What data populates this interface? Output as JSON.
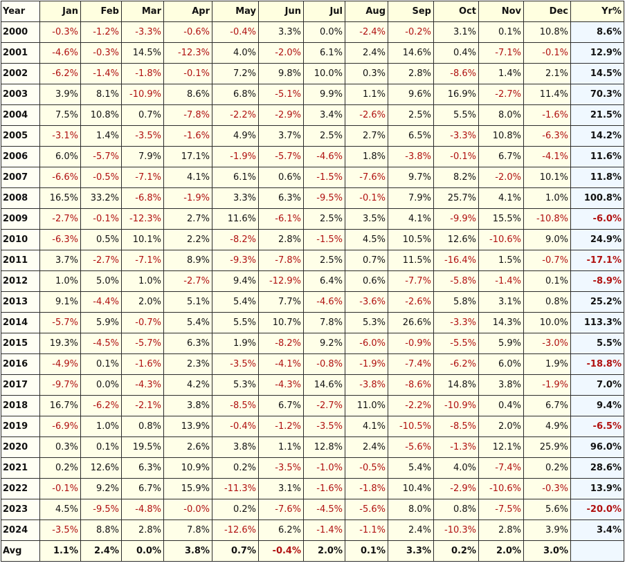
{
  "table": {
    "columns": [
      "Year",
      "Jan",
      "Feb",
      "Mar",
      "Apr",
      "May",
      "Jun",
      "Jul",
      "Aug",
      "Sep",
      "Oct",
      "Nov",
      "Dec",
      "Yr%"
    ],
    "rows": [
      [
        "2000",
        "-0.3%",
        "-1.2%",
        "-3.3%",
        "-0.6%",
        "-0.4%",
        "3.3%",
        "0.0%",
        "-2.4%",
        "-0.2%",
        "3.1%",
        "0.1%",
        "10.8%",
        "8.6%"
      ],
      [
        "2001",
        "-4.6%",
        "-0.3%",
        "14.5%",
        "-12.3%",
        "4.0%",
        "-2.0%",
        "6.1%",
        "2.4%",
        "14.6%",
        "0.4%",
        "-7.1%",
        "-0.1%",
        "12.9%"
      ],
      [
        "2002",
        "-6.2%",
        "-1.4%",
        "-1.8%",
        "-0.1%",
        "7.2%",
        "9.8%",
        "10.0%",
        "0.3%",
        "2.8%",
        "-8.6%",
        "1.4%",
        "2.1%",
        "14.5%"
      ],
      [
        "2003",
        "3.9%",
        "8.1%",
        "-10.9%",
        "8.6%",
        "6.8%",
        "-5.1%",
        "9.9%",
        "1.1%",
        "9.6%",
        "16.9%",
        "-2.7%",
        "11.4%",
        "70.3%"
      ],
      [
        "2004",
        "7.5%",
        "10.8%",
        "0.7%",
        "-7.8%",
        "-2.2%",
        "-2.9%",
        "3.4%",
        "-2.6%",
        "2.5%",
        "5.5%",
        "8.0%",
        "-1.6%",
        "21.5%"
      ],
      [
        "2005",
        "-3.1%",
        "1.4%",
        "-3.5%",
        "-1.6%",
        "4.9%",
        "3.7%",
        "2.5%",
        "2.7%",
        "6.5%",
        "-3.3%",
        "10.8%",
        "-6.3%",
        "14.2%"
      ],
      [
        "2006",
        "6.0%",
        "-5.7%",
        "7.9%",
        "17.1%",
        "-1.9%",
        "-5.7%",
        "-4.6%",
        "1.8%",
        "-3.8%",
        "-0.1%",
        "6.7%",
        "-4.1%",
        "11.6%"
      ],
      [
        "2007",
        "-6.6%",
        "-0.5%",
        "-7.1%",
        "4.1%",
        "6.1%",
        "0.6%",
        "-1.5%",
        "-7.6%",
        "9.7%",
        "8.2%",
        "-2.0%",
        "10.1%",
        "11.8%"
      ],
      [
        "2008",
        "16.5%",
        "33.2%",
        "-6.8%",
        "-1.9%",
        "3.3%",
        "6.3%",
        "-9.5%",
        "-0.1%",
        "7.9%",
        "25.7%",
        "4.1%",
        "1.0%",
        "100.8%"
      ],
      [
        "2009",
        "-2.7%",
        "-0.1%",
        "-12.3%",
        "2.7%",
        "11.6%",
        "-6.1%",
        "2.5%",
        "3.5%",
        "4.1%",
        "-9.9%",
        "15.5%",
        "-10.8%",
        "-6.0%"
      ],
      [
        "2010",
        "-6.3%",
        "0.5%",
        "10.1%",
        "2.2%",
        "-8.2%",
        "2.8%",
        "-1.5%",
        "4.5%",
        "10.5%",
        "12.6%",
        "-10.6%",
        "9.0%",
        "24.9%"
      ],
      [
        "2011",
        "3.7%",
        "-2.7%",
        "-7.1%",
        "8.9%",
        "-9.3%",
        "-7.8%",
        "2.5%",
        "0.7%",
        "11.5%",
        "-16.4%",
        "1.5%",
        "-0.7%",
        "-17.1%"
      ],
      [
        "2012",
        "1.0%",
        "5.0%",
        "1.0%",
        "-2.7%",
        "9.4%",
        "-12.9%",
        "6.4%",
        "0.6%",
        "-7.7%",
        "-5.8%",
        "-1.4%",
        "0.1%",
        "-8.9%"
      ],
      [
        "2013",
        "9.1%",
        "-4.4%",
        "2.0%",
        "5.1%",
        "5.4%",
        "7.7%",
        "-4.6%",
        "-3.6%",
        "-2.6%",
        "5.8%",
        "3.1%",
        "0.8%",
        "25.2%"
      ],
      [
        "2014",
        "-5.7%",
        "5.9%",
        "-0.7%",
        "5.4%",
        "5.5%",
        "10.7%",
        "7.8%",
        "5.3%",
        "26.6%",
        "-3.3%",
        "14.3%",
        "10.0%",
        "113.3%"
      ],
      [
        "2015",
        "19.3%",
        "-4.5%",
        "-5.7%",
        "6.3%",
        "1.9%",
        "-8.2%",
        "9.2%",
        "-6.0%",
        "-0.9%",
        "-5.5%",
        "5.9%",
        "-3.0%",
        "5.5%"
      ],
      [
        "2016",
        "-4.9%",
        "0.1%",
        "-1.6%",
        "2.3%",
        "-3.5%",
        "-4.1%",
        "-0.8%",
        "-1.9%",
        "-7.4%",
        "-6.2%",
        "6.0%",
        "1.9%",
        "-18.8%"
      ],
      [
        "2017",
        "-9.7%",
        "0.0%",
        "-4.3%",
        "4.2%",
        "5.3%",
        "-4.3%",
        "14.6%",
        "-3.8%",
        "-8.6%",
        "14.8%",
        "3.8%",
        "-1.9%",
        "7.0%"
      ],
      [
        "2018",
        "16.7%",
        "-6.2%",
        "-2.1%",
        "3.8%",
        "-8.5%",
        "6.7%",
        "-2.7%",
        "11.0%",
        "-2.2%",
        "-10.9%",
        "0.4%",
        "6.7%",
        "9.4%"
      ],
      [
        "2019",
        "-6.9%",
        "1.0%",
        "0.8%",
        "13.9%",
        "-0.4%",
        "-1.2%",
        "-3.5%",
        "4.1%",
        "-10.5%",
        "-8.5%",
        "2.0%",
        "4.9%",
        "-6.5%"
      ],
      [
        "2020",
        "0.3%",
        "0.1%",
        "19.5%",
        "2.6%",
        "3.8%",
        "1.1%",
        "12.8%",
        "2.4%",
        "-5.6%",
        "-1.3%",
        "12.1%",
        "25.9%",
        "96.0%"
      ],
      [
        "2021",
        "0.2%",
        "12.6%",
        "6.3%",
        "10.9%",
        "0.2%",
        "-3.5%",
        "-1.0%",
        "-0.5%",
        "5.4%",
        "4.0%",
        "-7.4%",
        "0.2%",
        "28.6%"
      ],
      [
        "2022",
        "-0.1%",
        "9.2%",
        "6.7%",
        "15.9%",
        "-11.3%",
        "3.1%",
        "-1.6%",
        "-1.8%",
        "10.4%",
        "-2.9%",
        "-10.6%",
        "-0.3%",
        "13.9%"
      ],
      [
        "2023",
        "4.5%",
        "-9.5%",
        "-4.8%",
        "-0.0%",
        "0.2%",
        "-7.6%",
        "-4.5%",
        "-5.6%",
        "8.0%",
        "0.8%",
        "-7.5%",
        "5.6%",
        "-20.0%"
      ],
      [
        "2024",
        "-3.5%",
        "8.8%",
        "2.8%",
        "7.8%",
        "-12.6%",
        "6.2%",
        "-1.4%",
        "-1.1%",
        "2.4%",
        "-10.3%",
        "2.8%",
        "3.9%",
        "3.4%"
      ],
      [
        "Avg",
        "1.1%",
        "2.4%",
        "0.0%",
        "3.8%",
        "0.7%",
        "-0.4%",
        "2.0%",
        "0.1%",
        "3.3%",
        "0.2%",
        "2.0%",
        "3.0%"
      ]
    ]
  }
}
